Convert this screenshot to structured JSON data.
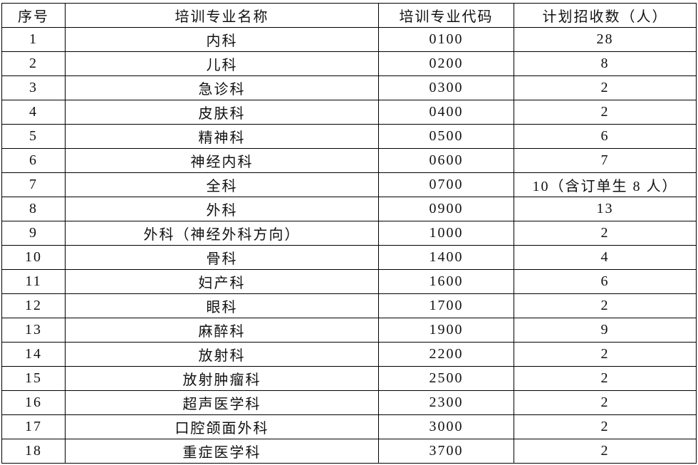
{
  "table": {
    "header": [
      "序号",
      "培训专业名称",
      "培训专业代码",
      "计划招收数（人）"
    ],
    "rows": [
      [
        "1",
        "内科",
        "0100",
        "28"
      ],
      [
        "2",
        "儿科",
        "0200",
        "8"
      ],
      [
        "3",
        "急诊科",
        "0300",
        "2"
      ],
      [
        "4",
        "皮肤科",
        "0400",
        "2"
      ],
      [
        "5",
        "精神科",
        "0500",
        "6"
      ],
      [
        "6",
        "神经内科",
        "0600",
        "7"
      ],
      [
        "7",
        "全科",
        "0700",
        "10（含订单生 8 人）"
      ],
      [
        "8",
        "外科",
        "0900",
        "13"
      ],
      [
        "9",
        "外科（神经外科方向）",
        "1000",
        "2"
      ],
      [
        "10",
        "骨科",
        "1400",
        "4"
      ],
      [
        "11",
        "妇产科",
        "1600",
        "6"
      ],
      [
        "12",
        "眼科",
        "1700",
        "2"
      ],
      [
        "13",
        "麻醉科",
        "1900",
        "9"
      ],
      [
        "14",
        "放射科",
        "2200",
        "2"
      ],
      [
        "15",
        "放射肿瘤科",
        "2500",
        "2"
      ],
      [
        "16",
        "超声医学科",
        "2300",
        "2"
      ],
      [
        "17",
        "口腔颌面外科",
        "3000",
        "2"
      ],
      [
        "18",
        "重症医学科",
        "3700",
        "2"
      ]
    ]
  }
}
